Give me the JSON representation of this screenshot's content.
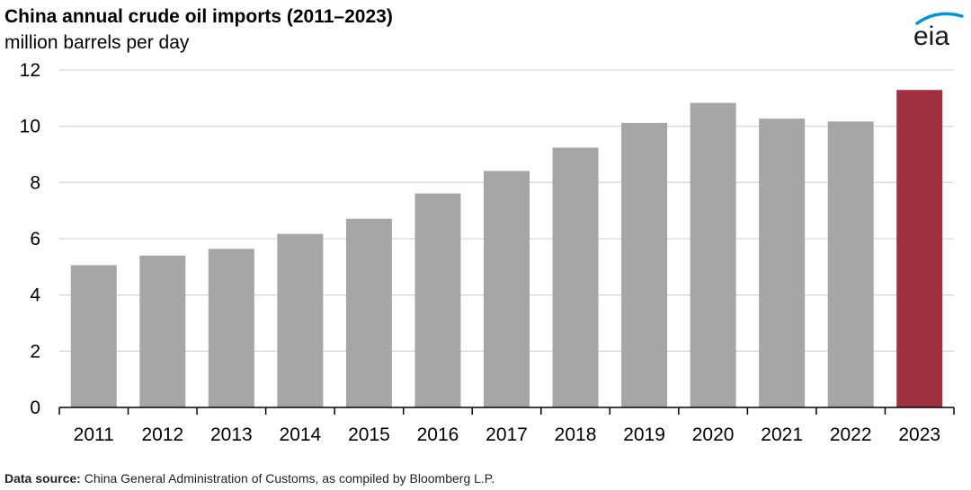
{
  "title": "China annual crude oil imports (2011–2023)",
  "subtitle": "million barrels per day",
  "logo_text": "eia",
  "source_label": "Data source:",
  "source_text": "China General Administration of Customs, as compiled by Bloomberg L.P.",
  "colors": {
    "bar_default": "#a6a6a6",
    "bar_highlight": "#a03040",
    "grid": "#d9d9d9",
    "axis": "#000000",
    "logo_arc": "#0096d6"
  },
  "chart_data": {
    "type": "bar",
    "title": "China annual crude oil imports (2011–2023)",
    "ylabel": "million barrels per day",
    "xlabel": "",
    "categories": [
      "2011",
      "2012",
      "2013",
      "2014",
      "2015",
      "2016",
      "2017",
      "2018",
      "2019",
      "2020",
      "2021",
      "2022",
      "2023"
    ],
    "values": [
      5.06,
      5.4,
      5.64,
      6.17,
      6.71,
      7.61,
      8.41,
      9.24,
      10.12,
      10.83,
      10.27,
      10.17,
      11.29
    ],
    "highlight_category": "2023",
    "ylim": [
      0,
      12
    ],
    "yticks": [
      0,
      2,
      4,
      6,
      8,
      10,
      12
    ],
    "grid": true
  }
}
